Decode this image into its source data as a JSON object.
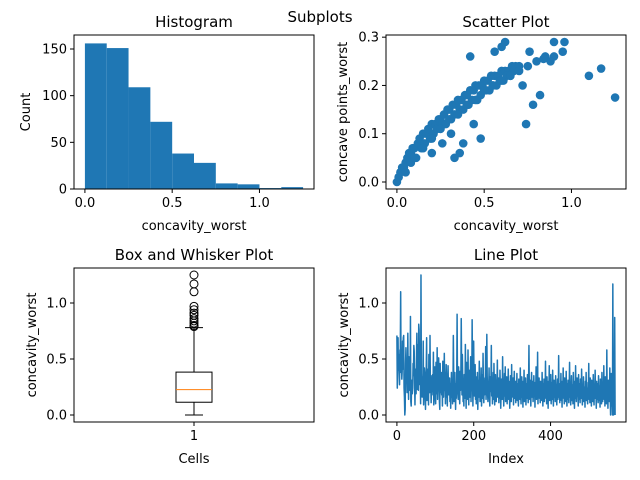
{
  "figure": {
    "suptitle": "Subplots",
    "series_color": "#1f77b4",
    "median_color": "#ff7f0e"
  },
  "chart_data": [
    {
      "type": "bar",
      "subtype": "histogram",
      "title": "Histogram",
      "xlabel": "concavity_worst",
      "ylabel": "Count",
      "bins": [
        [
          0.0,
          0.125
        ],
        [
          0.125,
          0.25
        ],
        [
          0.25,
          0.375
        ],
        [
          0.375,
          0.5
        ],
        [
          0.5,
          0.625
        ],
        [
          0.625,
          0.75
        ],
        [
          0.75,
          0.875
        ],
        [
          0.875,
          1.0
        ],
        [
          1.0,
          1.125
        ],
        [
          1.125,
          1.25
        ]
      ],
      "values": [
        156,
        151,
        109,
        72,
        38,
        28,
        6,
        5,
        1,
        2
      ],
      "xlim": [
        -0.0625,
        1.3125
      ],
      "ylim": [
        0,
        165
      ],
      "xticks": [
        0.0,
        0.5,
        1.0
      ],
      "xtick_labels": [
        "0.0",
        "0.5",
        "1.0"
      ],
      "yticks": [
        0,
        50,
        100,
        150
      ],
      "ytick_labels": [
        "0",
        "50",
        "100",
        "150"
      ]
    },
    {
      "type": "scatter",
      "title": "Scatter Plot",
      "xlabel": "concavity_worst",
      "ylabel": "concave points_worst",
      "x": [
        0.0,
        0.01,
        0.02,
        0.03,
        0.04,
        0.05,
        0.06,
        0.07,
        0.08,
        0.09,
        0.1,
        0.12,
        0.13,
        0.15,
        0.17,
        0.18,
        0.2,
        0.22,
        0.24,
        0.25,
        0.27,
        0.29,
        0.3,
        0.32,
        0.34,
        0.35,
        0.37,
        0.39,
        0.4,
        0.42,
        0.44,
        0.45,
        0.47,
        0.49,
        0.5,
        0.52,
        0.54,
        0.56,
        0.58,
        0.6,
        0.62,
        0.64,
        0.66,
        0.68,
        0.7,
        0.05,
        0.08,
        0.11,
        0.14,
        0.16,
        0.19,
        0.21,
        0.23,
        0.26,
        0.28,
        0.31,
        0.33,
        0.36,
        0.38,
        0.41,
        0.43,
        0.46,
        0.48,
        0.51,
        0.53,
        0.55,
        0.57,
        0.59,
        0.61,
        0.63,
        0.65,
        0.67,
        0.1,
        0.15,
        0.2,
        0.25,
        0.3,
        0.35,
        0.4,
        0.45,
        0.5,
        0.55,
        0.6,
        0.65,
        0.7,
        0.75,
        0.8,
        0.85,
        0.9,
        0.95,
        0.72,
        0.74,
        0.78,
        0.82,
        0.88,
        0.96,
        1.1,
        1.17,
        1.25,
        0.33,
        0.36,
        0.38,
        0.42,
        0.56,
        0.6,
        0.62,
        0.76,
        0.84,
        0.9,
        0.2,
        0.26,
        0.31,
        0.44,
        0.48
      ],
      "y": [
        0.0,
        0.01,
        0.02,
        0.03,
        0.03,
        0.04,
        0.05,
        0.06,
        0.06,
        0.07,
        0.07,
        0.08,
        0.09,
        0.1,
        0.1,
        0.11,
        0.12,
        0.12,
        0.13,
        0.13,
        0.14,
        0.15,
        0.15,
        0.16,
        0.16,
        0.17,
        0.17,
        0.18,
        0.18,
        0.19,
        0.19,
        0.2,
        0.2,
        0.2,
        0.21,
        0.21,
        0.22,
        0.22,
        0.22,
        0.23,
        0.23,
        0.23,
        0.24,
        0.24,
        0.24,
        0.02,
        0.04,
        0.05,
        0.07,
        0.08,
        0.09,
        0.1,
        0.11,
        0.12,
        0.12,
        0.13,
        0.14,
        0.15,
        0.15,
        0.16,
        0.17,
        0.17,
        0.18,
        0.19,
        0.19,
        0.2,
        0.2,
        0.21,
        0.21,
        0.22,
        0.22,
        0.23,
        0.05,
        0.07,
        0.09,
        0.11,
        0.13,
        0.14,
        0.16,
        0.17,
        0.19,
        0.2,
        0.21,
        0.22,
        0.23,
        0.24,
        0.25,
        0.26,
        0.26,
        0.27,
        0.2,
        0.12,
        0.16,
        0.18,
        0.25,
        0.29,
        0.22,
        0.235,
        0.175,
        0.05,
        0.06,
        0.08,
        0.26,
        0.27,
        0.28,
        0.29,
        0.27,
        0.255,
        0.29,
        0.06,
        0.08,
        0.1,
        0.12,
        0.09
      ],
      "xlim": [
        -0.0625,
        1.3125
      ],
      "ylim": [
        -0.0145,
        0.3045
      ],
      "xticks": [
        0.0,
        0.5,
        1.0
      ],
      "xtick_labels": [
        "0.0",
        "0.5",
        "1.0"
      ],
      "yticks": [
        0.0,
        0.1,
        0.2,
        0.3
      ],
      "ytick_labels": [
        "0.0",
        "0.1",
        "0.2",
        "0.3"
      ]
    },
    {
      "type": "box",
      "title": "Box and Whisker Plot",
      "xlabel": "Cells",
      "ylabel": "concavity_worst",
      "category": "1",
      "whisker_low": 0.0,
      "q1": 0.114,
      "median": 0.227,
      "q3": 0.383,
      "whisker_high": 0.78,
      "outliers": [
        0.79,
        0.8,
        0.82,
        0.84,
        0.86,
        0.89,
        0.91,
        0.94,
        0.97,
        1.1,
        1.17,
        1.25
      ],
      "xlim": [
        0.5,
        1.5
      ],
      "ylim": [
        -0.0625,
        1.3125
      ],
      "xticks": [
        1
      ],
      "xtick_labels": [
        "1"
      ],
      "yticks": [
        0.0,
        0.5,
        1.0
      ],
      "ytick_labels": [
        "0.0",
        "0.5",
        "1.0"
      ]
    },
    {
      "type": "line",
      "title": "Line Plot",
      "xlabel": "Index",
      "ylabel": "concavity_worst",
      "x_start": 0,
      "x_end": 568,
      "y": [
        0.71,
        0.24,
        0.45,
        0.69,
        0.4,
        0.54,
        0.38,
        0.27,
        0.58,
        0.55,
        1.1,
        0.38,
        0.53,
        0.32,
        0.39,
        0.66,
        0.41,
        0.69,
        0.71,
        0.24,
        0.16,
        0.0,
        0.05,
        0.46,
        0.6,
        0.43,
        0.39,
        0.2,
        0.25,
        0.73,
        0.36,
        0.14,
        0.52,
        0.29,
        0.44,
        0.22,
        0.88,
        0.12,
        0.08,
        0.27,
        0.31,
        0.19,
        0.24,
        0.46,
        0.35,
        0.62,
        0.57,
        0.28,
        0.09,
        0.33,
        0.41,
        0.19,
        0.5,
        0.73,
        0.23,
        0.63,
        0.34,
        0.22,
        0.81,
        0.76,
        0.48,
        0.27,
        0.4,
        0.1,
        1.25,
        0.37,
        0.22,
        0.16,
        0.34,
        0.24,
        0.66,
        0.09,
        0.24,
        0.42,
        0.36,
        0.2,
        0.05,
        0.31,
        0.42,
        0.69,
        0.13,
        0.28,
        0.19,
        0.41,
        0.09,
        0.54,
        0.33,
        0.2,
        0.71,
        0.26,
        0.3,
        0.11,
        0.25,
        0.35,
        0.21,
        0.36,
        0.18,
        0.56,
        0.09,
        0.15,
        0.27,
        0.43,
        0.23,
        0.1,
        0.47,
        0.3,
        0.19,
        0.6,
        0.14,
        0.28,
        0.22,
        0.51,
        0.33,
        0.12,
        0.05,
        0.46,
        0.27,
        0.2,
        0.38,
        0.18,
        0.3,
        0.08,
        0.48,
        0.25,
        0.16,
        0.32,
        0.55,
        0.22,
        0.38,
        0.1,
        0.29,
        0.45,
        0.16,
        0.26,
        0.08,
        0.34,
        0.44,
        0.24,
        0.18,
        0.21,
        0.33,
        0.12,
        0.28,
        0.06,
        0.24,
        0.38,
        0.16,
        0.26,
        0.1,
        0.19,
        0.71,
        0.34,
        0.12,
        0.22,
        0.38,
        0.22,
        0.05,
        0.28,
        0.15,
        0.32,
        0.9,
        0.31,
        0.2,
        0.14,
        0.43,
        0.26,
        0.19,
        0.1,
        0.39,
        0.22,
        0.32,
        0.86,
        0.44,
        0.18,
        0.54,
        0.3,
        0.12,
        0.21,
        0.08,
        0.36,
        0.24,
        0.15,
        0.63,
        0.31,
        0.06,
        0.47,
        0.24,
        0.33,
        0.14,
        0.58,
        0.27,
        0.09,
        0.4,
        0.21,
        0.16,
        0.34,
        0.52,
        0.12,
        0.3,
        0.22,
        0.85,
        0.38,
        0.08,
        0.27,
        0.66,
        0.32,
        0.17,
        0.2,
        0.45,
        0.14,
        0.28,
        0.1,
        0.34,
        0.22,
        0.38,
        0.05,
        0.2,
        0.31,
        0.16,
        0.48,
        0.24,
        0.12,
        0.26,
        0.19,
        0.42,
        0.08,
        0.22,
        0.36,
        0.15,
        0.55,
        0.27,
        0.11,
        0.29,
        0.18,
        0.33,
        0.23,
        0.61,
        0.14,
        0.26,
        0.72,
        0.35,
        0.2,
        0.12,
        0.3,
        0.24,
        0.42,
        0.16,
        0.08,
        0.34,
        0.21,
        0.27,
        0.62,
        0.17,
        0.3,
        0.1,
        0.25,
        0.38,
        0.14,
        0.46,
        0.22,
        0.09,
        0.28,
        0.36,
        0.18,
        0.12,
        0.31,
        0.24,
        0.49,
        0.16,
        0.2,
        0.33,
        0.11,
        0.27,
        0.15,
        0.4,
        0.23,
        0.06,
        0.19,
        0.32,
        0.26,
        0.14,
        0.52,
        0.21,
        0.3,
        0.08,
        0.24,
        0.37,
        0.17,
        0.43,
        0.12,
        0.29,
        0.2,
        0.34,
        0.1,
        0.25,
        0.18,
        0.41,
        0.14,
        0.3,
        0.22,
        0.06,
        0.19,
        0.35,
        0.27,
        0.12,
        0.45,
        0.2,
        0.28,
        0.16,
        0.33,
        0.09,
        0.24,
        0.39,
        0.15,
        0.21,
        0.3,
        0.11,
        0.26,
        0.18,
        0.37,
        0.13,
        0.28,
        0.22,
        0.08,
        0.32,
        0.19,
        0.25,
        0.14,
        0.42,
        0.2,
        0.1,
        0.27,
        0.34,
        0.16,
        0.23,
        0.07,
        0.3,
        0.21,
        0.4,
        0.12,
        0.25,
        0.18,
        0.33,
        0.09,
        0.22,
        0.28,
        0.15,
        0.36,
        0.2,
        0.11,
        0.27,
        0.62,
        0.24,
        0.14,
        0.31,
        0.19,
        0.08,
        0.26,
        0.38,
        0.16,
        0.22,
        0.3,
        0.12,
        0.2,
        0.35,
        0.17,
        0.25,
        0.07,
        0.29,
        0.21,
        0.43,
        0.14,
        0.24,
        0.18,
        0.56,
        0.1,
        0.27,
        0.2,
        0.33,
        0.15,
        0.23,
        0.11,
        0.3,
        0.19,
        0.26,
        0.13,
        0.38,
        0.21,
        0.08,
        0.28,
        0.17,
        0.32,
        0.12,
        0.24,
        0.2,
        0.48,
        0.15,
        0.27,
        0.1,
        0.34,
        0.18,
        0.23,
        0.06,
        0.3,
        0.2,
        0.44,
        0.13,
        0.26,
        0.17,
        0.36,
        0.1,
        0.22,
        0.29,
        0.14,
        0.4,
        0.19,
        0.08,
        0.25,
        0.31,
        0.16,
        0.21,
        0.12,
        0.35,
        0.18,
        0.27,
        0.09,
        0.23,
        0.32,
        0.14,
        0.2,
        0.53,
        0.16,
        0.28,
        0.11,
        0.24,
        0.19,
        0.37,
        0.13,
        0.26,
        0.07,
        0.3,
        0.2,
        0.42,
        0.15,
        0.22,
        0.1,
        0.33,
        0.17,
        0.25,
        0.12,
        0.39,
        0.19,
        0.08,
        0.28,
        0.14,
        0.31,
        0.21,
        0.11,
        0.24,
        0.47,
        0.16,
        0.29,
        0.09,
        0.23,
        0.35,
        0.13,
        0.2,
        0.27,
        0.1,
        0.38,
        0.18,
        0.24,
        0.06,
        0.3,
        0.15,
        0.44,
        0.2,
        0.12,
        0.26,
        0.33,
        0.17,
        0.22,
        0.08,
        0.36,
        0.14,
        0.28,
        0.19,
        0.11,
        0.32,
        0.23,
        0.15,
        0.41,
        0.2,
        0.09,
        0.27,
        0.17,
        0.34,
        0.12,
        0.25,
        0.21,
        0.07,
        0.3,
        0.16,
        0.38,
        0.13,
        0.24,
        0.18,
        0.1,
        0.29,
        0.22,
        0.46,
        0.14,
        0.26,
        0.11,
        0.33,
        0.19,
        0.23,
        0.08,
        0.31,
        0.17,
        0.27,
        0.12,
        0.36,
        0.2,
        0.09,
        0.25,
        0.15,
        0.4,
        0.18,
        0.22,
        0.06,
        0.3,
        0.14,
        0.28,
        0.19,
        0.11,
        0.35,
        0.21,
        0.13,
        0.26,
        0.07,
        0.32,
        0.16,
        0.24,
        0.1,
        0.38,
        0.2,
        0.12,
        0.29,
        0.17,
        0.44,
        0.14,
        0.23,
        0.08,
        0.34,
        0.19,
        0.27,
        0.1,
        0.58,
        0.15,
        0.22,
        0.06,
        0.31,
        0.18,
        0.26,
        0.12,
        0.42,
        0.2,
        0.0,
        0.14,
        0.37,
        0.08,
        0.25,
        0.0,
        1.17,
        0.19,
        0.0,
        0.32,
        0.05,
        0.87,
        0.0
      ],
      "xlim": [
        -28.4,
        596.4
      ],
      "ylim": [
        -0.0625,
        1.3125
      ],
      "xticks": [
        0,
        200,
        400
      ],
      "xtick_labels": [
        "0",
        "200",
        "400"
      ],
      "yticks": [
        0.0,
        0.5,
        1.0
      ],
      "ytick_labels": [
        "0.0",
        "0.5",
        "1.0"
      ]
    }
  ]
}
